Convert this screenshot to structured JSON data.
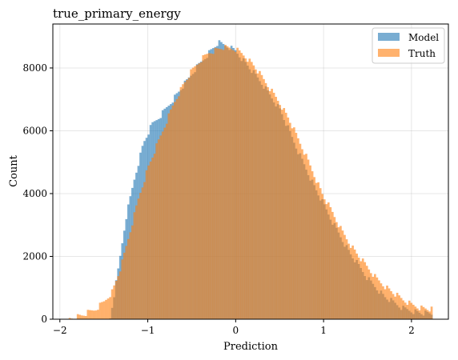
{
  "chart_data": {
    "type": "bar",
    "title": "true_primary_energy",
    "xlabel": "Prediction",
    "ylabel": "Count",
    "xlim": [
      -2.08,
      2.42
    ],
    "ylim": [
      0,
      9400
    ],
    "xticks": [
      -2,
      -1,
      0,
      1,
      2
    ],
    "yticks": [
      0,
      2000,
      4000,
      6000,
      8000
    ],
    "grid": true,
    "legend_position": "top-right",
    "bin_range": [
      -1.9,
      2.24
    ],
    "series": [
      {
        "name": "Model",
        "color": "#1f77b4",
        "opacity": 0.6,
        "start": -1.43,
        "end": 2.24,
        "profile": [
          [
            -1.43,
            0
          ],
          [
            -1.35,
            1300
          ],
          [
            -1.25,
            3200
          ],
          [
            -1.15,
            4500
          ],
          [
            -1.05,
            5600
          ],
          [
            -0.95,
            6200
          ],
          [
            -0.85,
            6500
          ],
          [
            -0.7,
            7050
          ],
          [
            -0.55,
            7600
          ],
          [
            -0.45,
            8000
          ],
          [
            -0.3,
            8500
          ],
          [
            -0.2,
            8800
          ],
          [
            -0.1,
            8700
          ],
          [
            0.0,
            8550
          ],
          [
            0.1,
            8200
          ],
          [
            0.3,
            7500
          ],
          [
            0.5,
            6700
          ],
          [
            0.7,
            5400
          ],
          [
            0.9,
            4200
          ],
          [
            1.1,
            3100
          ],
          [
            1.3,
            2100
          ],
          [
            1.5,
            1300
          ],
          [
            1.7,
            700
          ],
          [
            1.9,
            350
          ],
          [
            2.1,
            200
          ],
          [
            2.24,
            150
          ]
        ]
      },
      {
        "name": "Truth",
        "color": "#ff7f0e",
        "opacity": 0.6,
        "start": -1.9,
        "end": 2.24,
        "profile": [
          [
            -1.9,
            20
          ],
          [
            -1.75,
            120
          ],
          [
            -1.6,
            300
          ],
          [
            -1.5,
            550
          ],
          [
            -1.4,
            900
          ],
          [
            -1.3,
            1700
          ],
          [
            -1.2,
            2800
          ],
          [
            -1.1,
            3900
          ],
          [
            -1.0,
            4800
          ],
          [
            -0.9,
            5500
          ],
          [
            -0.8,
            6200
          ],
          [
            -0.7,
            6900
          ],
          [
            -0.6,
            7450
          ],
          [
            -0.5,
            7900
          ],
          [
            -0.4,
            8250
          ],
          [
            -0.3,
            8500
          ],
          [
            -0.15,
            8650
          ],
          [
            0.0,
            8600
          ],
          [
            0.1,
            8400
          ],
          [
            0.2,
            8100
          ],
          [
            0.3,
            7700
          ],
          [
            0.4,
            7300
          ],
          [
            0.5,
            6900
          ],
          [
            0.6,
            6400
          ],
          [
            0.7,
            5800
          ],
          [
            0.8,
            5200
          ],
          [
            0.9,
            4550
          ],
          [
            1.0,
            3900
          ],
          [
            1.1,
            3400
          ],
          [
            1.2,
            2850
          ],
          [
            1.3,
            2400
          ],
          [
            1.4,
            2000
          ],
          [
            1.5,
            1650
          ],
          [
            1.6,
            1300
          ],
          [
            1.7,
            1050
          ],
          [
            1.8,
            820
          ],
          [
            1.9,
            620
          ],
          [
            2.0,
            470
          ],
          [
            2.1,
            370
          ],
          [
            2.24,
            300
          ]
        ]
      }
    ]
  }
}
